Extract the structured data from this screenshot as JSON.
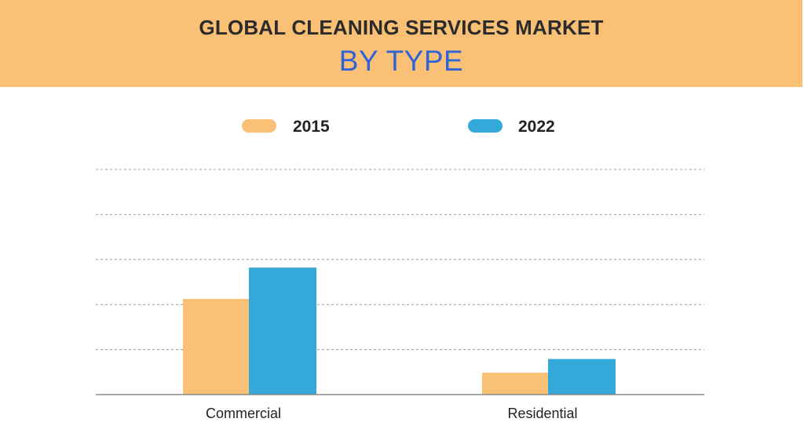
{
  "header": {
    "title": "GLOBAL CLEANING SERVICES MARKET",
    "subtitle": "BY TYPE"
  },
  "colors": {
    "header_bg": "#F9C076",
    "series_2015": "#F9C076",
    "series_2022": "#35A8DA",
    "subtitle": "#2F63D6",
    "gridline": "#999999"
  },
  "chart_data": {
    "type": "bar",
    "title": "",
    "xlabel": "",
    "ylabel": "",
    "categories": [
      "Commercial",
      "Residential"
    ],
    "series": [
      {
        "name": "2015",
        "values": [
          42.5,
          9.7
        ]
      },
      {
        "name": "2022",
        "values": [
          56.4,
          15.8
        ]
      }
    ],
    "ylim": [
      0,
      100
    ],
    "grid": true,
    "legend_position": "top"
  }
}
